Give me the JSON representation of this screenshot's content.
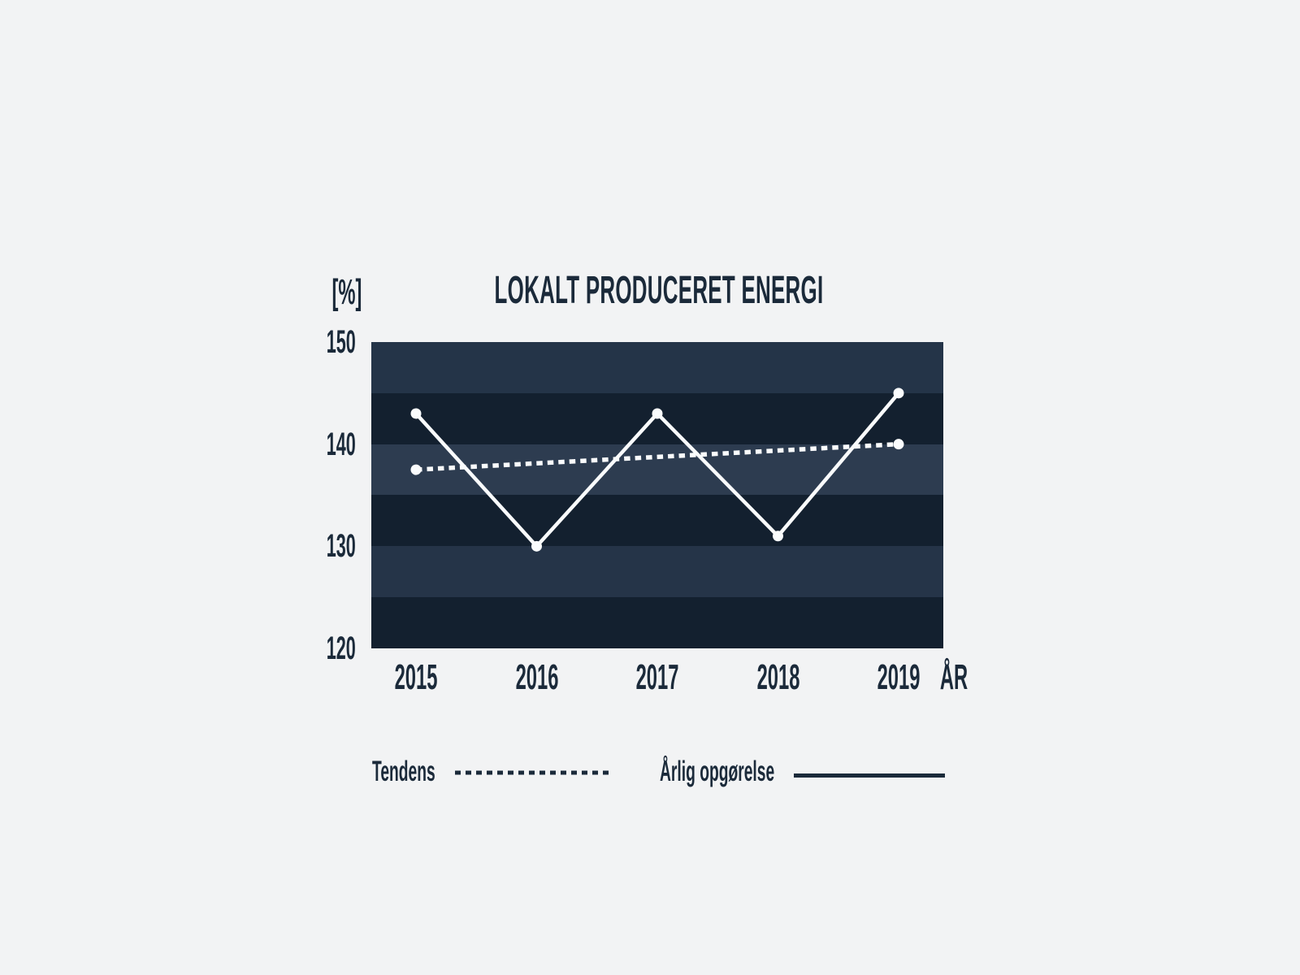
{
  "chart_data": {
    "type": "line",
    "title": "LOKALT PRODUCERET ENERGI",
    "unit_label": "[%]",
    "x_axis_label": "ÅR",
    "categories": [
      "2015",
      "2016",
      "2017",
      "2018",
      "2019"
    ],
    "series": [
      {
        "name": "Tendens",
        "style": "dashed",
        "markers": "ends",
        "values": [
          137.5,
          138.125,
          138.75,
          139.375,
          140
        ]
      },
      {
        "name": "Årlig opgørelse",
        "style": "solid",
        "markers": "all",
        "values": [
          143,
          130,
          143,
          131,
          145
        ]
      }
    ],
    "ylim": [
      120,
      150
    ],
    "yticks": [
      150,
      140,
      130,
      120
    ],
    "grid": "horizontal 5-unit color bands",
    "legend_position": "bottom",
    "band_colors": [
      "#243448",
      "#13202F",
      "#2D3C50",
      "#13202F",
      "#253448",
      "#13202F"
    ],
    "line_color": "#FAFCFD",
    "background": "#F2F3F4",
    "text_color": "#1B2A3A"
  }
}
